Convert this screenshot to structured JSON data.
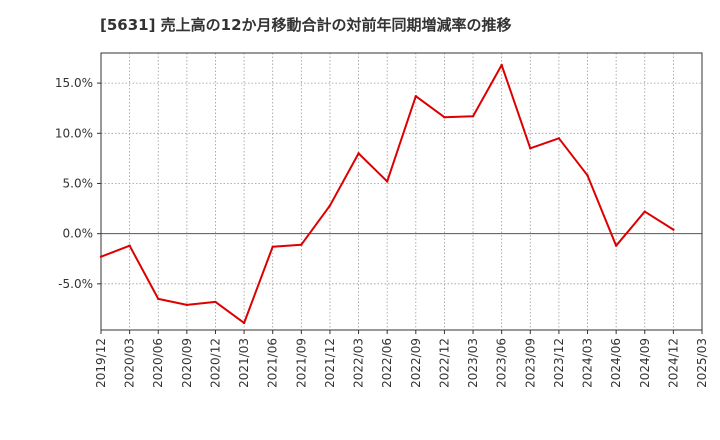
{
  "chart_data": {
    "type": "line",
    "title": "[5631]  売上高の12か月移動合計の対前年同期増減率の推移",
    "xlabel": "",
    "ylabel": "",
    "x": [
      "2019/12",
      "2020/03",
      "2020/06",
      "2020/09",
      "2020/12",
      "2021/03",
      "2021/06",
      "2021/09",
      "2021/12",
      "2022/03",
      "2022/06",
      "2022/09",
      "2022/12",
      "2023/03",
      "2023/06",
      "2023/09",
      "2023/12",
      "2024/03",
      "2024/06",
      "2024/09",
      "2024/12",
      "2025/03"
    ],
    "series": [
      {
        "name": "対前年同期増減率",
        "color": "#dd0000",
        "values": [
          -2.3,
          -1.2,
          -6.5,
          -7.1,
          -6.8,
          -8.9,
          -1.3,
          -1.1,
          2.8,
          8.0,
          5.2,
          13.7,
          11.6,
          11.7,
          16.8,
          8.5,
          9.5,
          5.8,
          -1.2,
          2.2,
          0.4,
          null
        ]
      }
    ],
    "ylim": [
      -9.6,
      18.0
    ],
    "yticks": [
      -5.0,
      0.0,
      5.0,
      10.0,
      15.0
    ],
    "ytick_labels": [
      "-5.0%",
      "0.0%",
      "5.0%",
      "10.0%",
      "15.0%"
    ],
    "grid": true,
    "zero_line": true,
    "legend": "none"
  }
}
